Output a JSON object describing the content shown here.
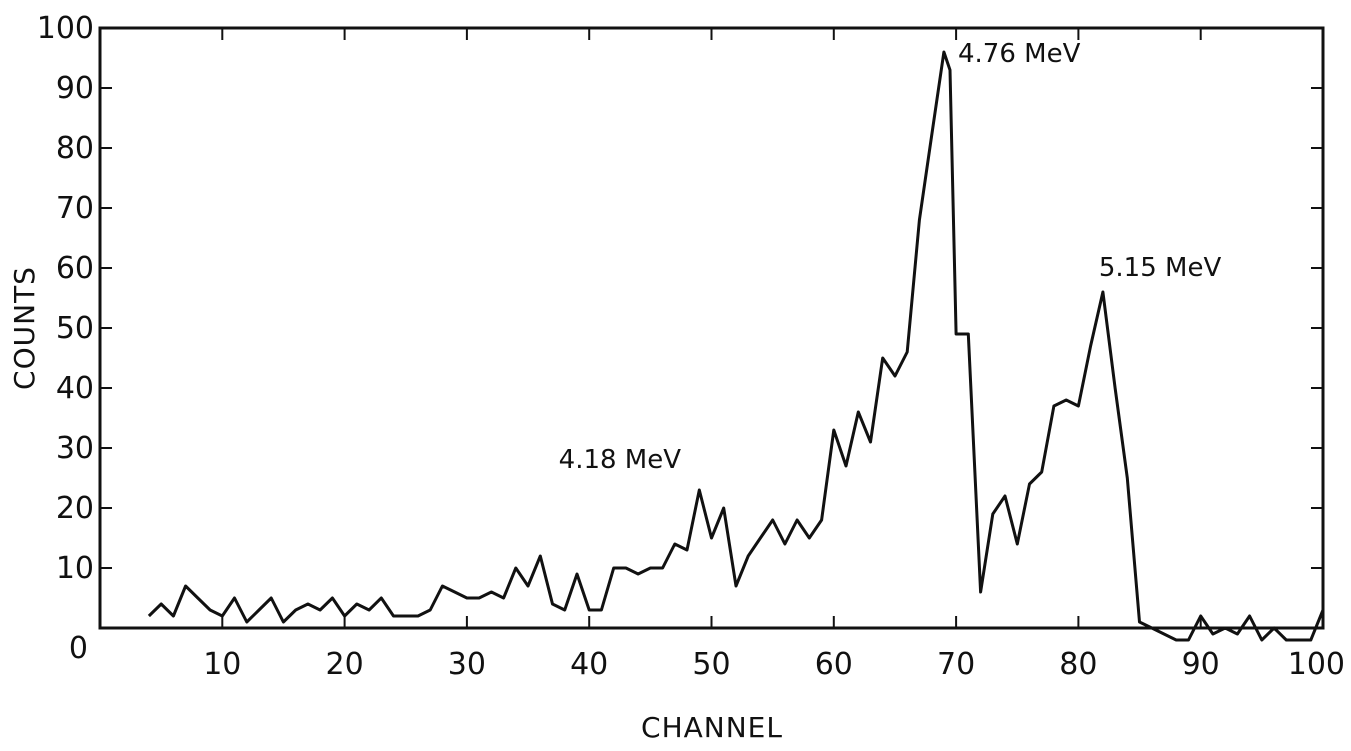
{
  "chart_data": {
    "type": "line",
    "xlabel": "CHANNEL",
    "ylabel": "COUNTS",
    "xlim": [
      0,
      100
    ],
    "ylim": [
      0,
      100
    ],
    "xticks": [
      "0",
      "10",
      "20",
      "30",
      "40",
      "50",
      "60",
      "70",
      "80",
      "90",
      "100"
    ],
    "yticks": [
      "10",
      "20",
      "30",
      "40",
      "50",
      "60",
      "70",
      "80",
      "90",
      "100"
    ],
    "grid": false,
    "series": [
      {
        "x": [
          4,
          5,
          6,
          7,
          8,
          9,
          10,
          11,
          12,
          13,
          14,
          15,
          16,
          17,
          18,
          19,
          20,
          21,
          22,
          23,
          24,
          25,
          26,
          27,
          28,
          29,
          30,
          31,
          32,
          33,
          34,
          35,
          36,
          37,
          38,
          39,
          40,
          41,
          42,
          43,
          44,
          45,
          46,
          47,
          48,
          49,
          50,
          51,
          52,
          53,
          54,
          55,
          56,
          57,
          58,
          59,
          60,
          61,
          62,
          63,
          64,
          65,
          66,
          67,
          68,
          69,
          69.5,
          70,
          71,
          72,
          73,
          74,
          75,
          76,
          77,
          78,
          79,
          80,
          81,
          82,
          83,
          84,
          85,
          86,
          87,
          88,
          89,
          90,
          91,
          92,
          93,
          94,
          95,
          96,
          97,
          98,
          99,
          100
        ],
        "values": [
          2,
          4,
          2,
          7,
          5,
          3,
          2,
          5,
          1,
          3,
          5,
          1,
          3,
          4,
          3,
          5,
          2,
          4,
          3,
          5,
          2,
          2,
          2,
          3,
          7,
          6,
          5,
          5,
          6,
          5,
          10,
          7,
          12,
          4,
          3,
          9,
          3,
          3,
          10,
          10,
          9,
          10,
          10,
          14,
          13,
          23,
          15,
          20,
          7,
          12,
          15,
          18,
          14,
          18,
          15,
          18,
          33,
          27,
          36,
          31,
          45,
          42,
          46,
          68,
          82,
          96,
          93,
          49,
          49,
          6,
          19,
          22,
          14,
          24,
          26,
          37,
          38,
          37,
          47,
          56,
          40,
          25,
          1,
          0,
          -1,
          -2,
          -2,
          2,
          -1,
          0,
          -1,
          2,
          -2,
          0,
          -2,
          -2,
          -2,
          3
        ]
      }
    ],
    "annotations": [
      {
        "text": "4.18 MeV",
        "x": 48,
        "y": 23
      },
      {
        "text": "4.76 MeV",
        "x": 69.5,
        "y": 96
      },
      {
        "text": "5.15 MeV",
        "x": 82,
        "y": 56
      }
    ]
  }
}
